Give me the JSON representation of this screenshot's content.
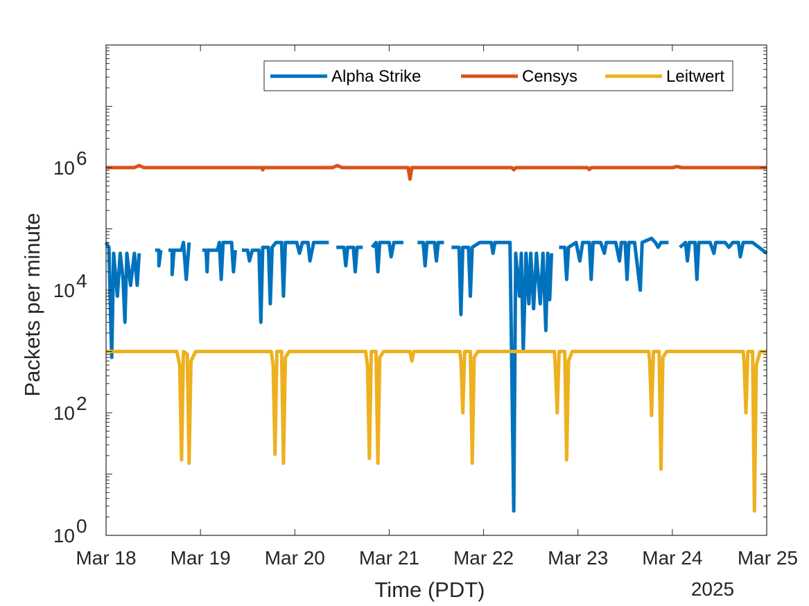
{
  "chart_data": {
    "type": "line",
    "title": "",
    "xlabel": "Time (PDT)",
    "ylabel": "Packets per minute",
    "yscale": "log",
    "ylim": [
      1,
      100000000
    ],
    "xlim": [
      0,
      7
    ],
    "x_tick_labels": [
      "Mar 18",
      "Mar 19",
      "Mar 20",
      "Mar 21",
      "Mar 22",
      "Mar 23",
      "Mar 24",
      "Mar 25"
    ],
    "x_secondary_label": "2025",
    "y_ticks": [
      {
        "base": "10",
        "exp": "0"
      },
      {
        "base": "10",
        "exp": "2"
      },
      {
        "base": "10",
        "exp": "4"
      },
      {
        "base": "10",
        "exp": "6"
      }
    ],
    "legend_location": "top-right",
    "series": [
      {
        "name": "Alpha Strike",
        "color": "#0072BD",
        "points": [
          [
            0,
            60000
          ],
          [
            0.03,
            50000
          ],
          [
            0.05,
            3000
          ],
          [
            0.06,
            800
          ],
          [
            0.08,
            40000
          ],
          [
            0.12,
            8000
          ],
          [
            0.15,
            40000
          ],
          [
            0.18,
            15000
          ],
          [
            0.2,
            3000
          ],
          [
            0.22,
            40000
          ],
          [
            0.26,
            12000
          ],
          [
            0.3,
            40000
          ],
          [
            0.33,
            12000
          ],
          [
            0.35,
            40000
          ],
          [
            0.38,
            null
          ],
          [
            0.52,
            45000
          ],
          [
            0.56,
            45000
          ],
          [
            0.56,
            25000
          ],
          [
            0.58,
            45000
          ],
          [
            0.62,
            null
          ],
          [
            0.66,
            45000
          ],
          [
            0.7,
            45000
          ],
          [
            0.7,
            18000
          ],
          [
            0.72,
            45000
          ],
          [
            0.8,
            45000
          ],
          [
            0.82,
            60000
          ],
          [
            0.85,
            15000
          ],
          [
            0.88,
            60000
          ],
          [
            0.97,
            null
          ],
          [
            1.02,
            45000
          ],
          [
            1.06,
            45000
          ],
          [
            1.07,
            20000
          ],
          [
            1.08,
            45000
          ],
          [
            1.18,
            45000
          ],
          [
            1.2,
            60000
          ],
          [
            1.22,
            15000
          ],
          [
            1.24,
            60000
          ],
          [
            1.33,
            60000
          ],
          [
            1.35,
            20000
          ],
          [
            1.37,
            45000
          ],
          [
            1.4,
            null
          ],
          [
            1.44,
            45000
          ],
          [
            1.5,
            45000
          ],
          [
            1.52,
            30000
          ],
          [
            1.55,
            45000
          ],
          [
            1.62,
            45000
          ],
          [
            1.64,
            3000
          ],
          [
            1.66,
            50000
          ],
          [
            1.72,
            50000
          ],
          [
            1.74,
            6000
          ],
          [
            1.76,
            50000
          ],
          [
            1.8,
            60000
          ],
          [
            1.86,
            60000
          ],
          [
            1.88,
            8000
          ],
          [
            1.9,
            60000
          ],
          [
            1.98,
            60000
          ],
          [
            2.02,
            60000
          ],
          [
            2.05,
            40000
          ],
          [
            2.08,
            60000
          ],
          [
            2.14,
            60000
          ],
          [
            2.16,
            30000
          ],
          [
            2.2,
            60000
          ],
          [
            2.3,
            60000
          ],
          [
            2.36,
            60000
          ],
          [
            2.4,
            null
          ],
          [
            2.44,
            50000
          ],
          [
            2.52,
            50000
          ],
          [
            2.54,
            25000
          ],
          [
            2.56,
            50000
          ],
          [
            2.62,
            50000
          ],
          [
            2.64,
            20000
          ],
          [
            2.66,
            50000
          ],
          [
            2.72,
            50000
          ],
          [
            2.78,
            null
          ],
          [
            2.82,
            50000
          ],
          [
            2.86,
            60000
          ],
          [
            2.88,
            20000
          ],
          [
            2.9,
            60000
          ],
          [
            3.0,
            60000
          ],
          [
            3.02,
            35000
          ],
          [
            3.05,
            60000
          ],
          [
            3.15,
            60000
          ],
          [
            3.18,
            null
          ],
          [
            3.3,
            60000
          ],
          [
            3.36,
            60000
          ],
          [
            3.38,
            25000
          ],
          [
            3.4,
            60000
          ],
          [
            3.48,
            60000
          ],
          [
            3.5,
            30000
          ],
          [
            3.52,
            60000
          ],
          [
            3.58,
            60000
          ],
          [
            3.62,
            null
          ],
          [
            3.66,
            50000
          ],
          [
            3.74,
            50000
          ],
          [
            3.76,
            4000
          ],
          [
            3.78,
            50000
          ],
          [
            3.84,
            50000
          ],
          [
            3.86,
            8000
          ],
          [
            3.88,
            50000
          ],
          [
            3.96,
            60000
          ],
          [
            4.08,
            60000
          ],
          [
            4.1,
            40000
          ],
          [
            4.12,
            60000
          ],
          [
            4.2,
            60000
          ],
          [
            4.28,
            60000
          ],
          [
            4.32,
            2.5
          ],
          [
            4.34,
            40000
          ],
          [
            4.38,
            8000
          ],
          [
            4.4,
            40000
          ],
          [
            4.42,
            1000
          ],
          [
            4.45,
            40000
          ],
          [
            4.48,
            6000
          ],
          [
            4.5,
            40000
          ],
          [
            4.53,
            5000
          ],
          [
            4.56,
            40000
          ],
          [
            4.6,
            6000
          ],
          [
            4.63,
            40000
          ],
          [
            4.66,
            2200
          ],
          [
            4.68,
            40000
          ],
          [
            4.7,
            7000
          ],
          [
            4.72,
            40000
          ],
          [
            4.72,
            null
          ],
          [
            4.8,
            50000
          ],
          [
            4.86,
            50000
          ],
          [
            4.88,
            15000
          ],
          [
            4.9,
            50000
          ],
          [
            4.98,
            60000
          ],
          [
            5.02,
            30000
          ],
          [
            5.05,
            60000
          ],
          [
            5.12,
            60000
          ],
          [
            5.14,
            15000
          ],
          [
            5.16,
            60000
          ],
          [
            5.24,
            60000
          ],
          [
            5.28,
            40000
          ],
          [
            5.3,
            60000
          ],
          [
            5.4,
            60000
          ],
          [
            5.44,
            30000
          ],
          [
            5.46,
            60000
          ],
          [
            5.5,
            60000
          ],
          [
            5.52,
            15000
          ],
          [
            5.54,
            60000
          ],
          [
            5.6,
            60000
          ],
          [
            5.66,
            10000
          ],
          [
            5.68,
            60000
          ],
          [
            5.78,
            70000
          ],
          [
            5.82,
            60000
          ],
          [
            5.85,
            50000
          ],
          [
            5.88,
            60000
          ],
          [
            5.96,
            60000
          ],
          [
            6.0,
            null
          ],
          [
            6.08,
            50000
          ],
          [
            6.14,
            60000
          ],
          [
            6.16,
            30000
          ],
          [
            6.18,
            60000
          ],
          [
            6.24,
            60000
          ],
          [
            6.26,
            15000
          ],
          [
            6.28,
            60000
          ],
          [
            6.4,
            60000
          ],
          [
            6.44,
            40000
          ],
          [
            6.46,
            60000
          ],
          [
            6.56,
            60000
          ],
          [
            6.6,
            50000
          ],
          [
            6.64,
            60000
          ],
          [
            6.7,
            60000
          ],
          [
            6.72,
            35000
          ],
          [
            6.75,
            60000
          ],
          [
            6.85,
            60000
          ],
          [
            7,
            40000
          ]
        ]
      },
      {
        "name": "Censys",
        "color": "#D95319",
        "points": [
          [
            0,
            1000000
          ],
          [
            0.3,
            1000000
          ],
          [
            0.35,
            1080000
          ],
          [
            0.4,
            1000000
          ],
          [
            1.0,
            1000000
          ],
          [
            1.65,
            1000000
          ],
          [
            1.66,
            920000
          ],
          [
            1.67,
            1000000
          ],
          [
            2.4,
            1000000
          ],
          [
            2.45,
            1080000
          ],
          [
            2.5,
            1000000
          ],
          [
            3.2,
            1000000
          ],
          [
            3.22,
            650000
          ],
          [
            3.24,
            1000000
          ],
          [
            4.3,
            1000000
          ],
          [
            4.32,
            920000
          ],
          [
            4.34,
            1000000
          ],
          [
            5.1,
            1000000
          ],
          [
            5.12,
            930000
          ],
          [
            5.14,
            1000000
          ],
          [
            6.0,
            1000000
          ],
          [
            6.05,
            1040000
          ],
          [
            6.1,
            1000000
          ],
          [
            7,
            1000000
          ]
        ]
      },
      {
        "name": "Leitwert",
        "color": "#EDB120",
        "points": [
          [
            0,
            1000
          ],
          [
            0.75,
            1000
          ],
          [
            0.78,
            600
          ],
          [
            0.8,
            17
          ],
          [
            0.82,
            1000
          ],
          [
            0.86,
            900
          ],
          [
            0.88,
            15
          ],
          [
            0.9,
            700
          ],
          [
            0.95,
            1000
          ],
          [
            1.75,
            1000
          ],
          [
            1.77,
            600
          ],
          [
            1.79,
            21
          ],
          [
            1.81,
            1000
          ],
          [
            1.86,
            1000
          ],
          [
            1.88,
            15
          ],
          [
            1.9,
            800
          ],
          [
            1.94,
            1000
          ],
          [
            2.75,
            1000
          ],
          [
            2.77,
            600
          ],
          [
            2.79,
            18
          ],
          [
            2.81,
            1000
          ],
          [
            2.86,
            1000
          ],
          [
            2.88,
            15
          ],
          [
            2.9,
            800
          ],
          [
            2.94,
            1000
          ],
          [
            3.22,
            1000
          ],
          [
            3.24,
            700
          ],
          [
            3.26,
            1000
          ],
          [
            3.75,
            1000
          ],
          [
            3.76,
            700
          ],
          [
            3.78,
            100
          ],
          [
            3.8,
            1000
          ],
          [
            3.86,
            1000
          ],
          [
            3.88,
            15
          ],
          [
            3.9,
            800
          ],
          [
            3.94,
            1000
          ],
          [
            4.75,
            1000
          ],
          [
            4.76,
            600
          ],
          [
            4.78,
            100
          ],
          [
            4.8,
            1000
          ],
          [
            4.86,
            1000
          ],
          [
            4.88,
            17
          ],
          [
            4.9,
            700
          ],
          [
            4.94,
            1000
          ],
          [
            5.75,
            1000
          ],
          [
            5.76,
            700
          ],
          [
            5.78,
            90
          ],
          [
            5.8,
            1000
          ],
          [
            5.86,
            1000
          ],
          [
            5.88,
            12
          ],
          [
            5.9,
            800
          ],
          [
            5.94,
            1000
          ],
          [
            6.75,
            1000
          ],
          [
            6.76,
            700
          ],
          [
            6.78,
            100
          ],
          [
            6.8,
            1000
          ],
          [
            6.85,
            1000
          ],
          [
            6.87,
            2.5
          ],
          [
            6.89,
            600
          ],
          [
            6.93,
            1000
          ],
          [
            7,
            1000
          ]
        ]
      }
    ]
  }
}
